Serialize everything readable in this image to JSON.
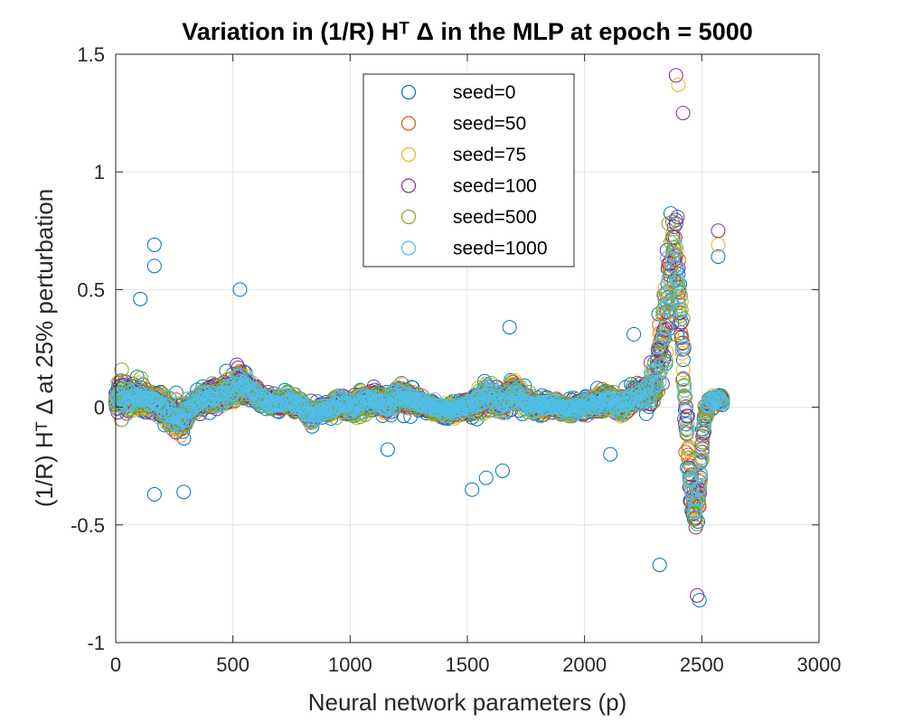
{
  "chart_data": {
    "type": "scatter",
    "title": "Variation in (1/R) Hᵀ Δ in the MLP at epoch = 5000",
    "xlabel": "Neural network parameters (p)",
    "ylabel": "(1/R) Hᵀ Δ at 25% perturbation",
    "xlim": [
      0,
      3000
    ],
    "ylim": [
      -1,
      1.5
    ],
    "x_ticks": [
      0,
      500,
      1000,
      1500,
      2000,
      2500,
      3000
    ],
    "y_ticks": [
      -1,
      -0.5,
      0,
      0.5,
      1,
      1.5
    ],
    "x_tick_labels": [
      "0",
      "500",
      "1000",
      "1500",
      "2000",
      "2500",
      "3000"
    ],
    "y_tick_labels": [
      "-1",
      "-0.5",
      "0",
      "0.5",
      "1",
      "1.5"
    ],
    "grid": true,
    "legend_position": "top-center",
    "marker": "open-circle",
    "profile": {
      "x": [
        0,
        25,
        60,
        110,
        160,
        210,
        260,
        290,
        320,
        380,
        440,
        490,
        530,
        570,
        620,
        680,
        740,
        800,
        830,
        860,
        910,
        960,
        1000,
        1050,
        1100,
        1150,
        1200,
        1250,
        1300,
        1350,
        1400,
        1450,
        1500,
        1550,
        1600,
        1650,
        1700,
        1750,
        1800,
        1850,
        1900,
        1950,
        2000,
        2050,
        2100,
        2150,
        2200,
        2250,
        2300,
        2330,
        2350,
        2370,
        2390,
        2410,
        2430,
        2450,
        2470,
        2490,
        2510,
        2530,
        2560,
        2590
      ],
      "y": [
        0.03,
        0.04,
        0.05,
        0.04,
        0.02,
        0.0,
        -0.05,
        -0.04,
        0.0,
        0.04,
        0.05,
        0.07,
        0.1,
        0.08,
        0.04,
        0.02,
        0.03,
        0.0,
        -0.04,
        -0.02,
        0.0,
        0.02,
        0.0,
        0.02,
        0.04,
        0.0,
        0.05,
        0.04,
        0.02,
        0.0,
        -0.02,
        -0.01,
        0.0,
        0.03,
        0.05,
        0.01,
        0.07,
        0.02,
        0.0,
        0.01,
        0.0,
        -0.01,
        0.0,
        0.02,
        0.03,
        0.0,
        0.04,
        0.05,
        0.1,
        0.25,
        0.45,
        0.6,
        0.65,
        0.4,
        0.0,
        -0.3,
        -0.45,
        -0.35,
        -0.05,
        0.02,
        0.03,
        0.03
      ],
      "spread": [
        0.08,
        0.16,
        0.12,
        0.1,
        0.08,
        0.1,
        0.14,
        0.12,
        0.06,
        0.09,
        0.1,
        0.12,
        0.13,
        0.08,
        0.05,
        0.05,
        0.07,
        0.05,
        0.09,
        0.06,
        0.06,
        0.09,
        0.07,
        0.1,
        0.09,
        0.06,
        0.1,
        0.09,
        0.07,
        0.06,
        0.05,
        0.06,
        0.06,
        0.11,
        0.12,
        0.07,
        0.12,
        0.08,
        0.06,
        0.07,
        0.06,
        0.06,
        0.06,
        0.07,
        0.08,
        0.07,
        0.08,
        0.1,
        0.2,
        0.3,
        0.45,
        0.55,
        0.45,
        0.35,
        0.3,
        0.22,
        0.18,
        0.15,
        0.1,
        0.06,
        0.04,
        0.04
      ]
    },
    "outliers": [
      {
        "x": 165,
        "y": 0.69,
        "series": 0
      },
      {
        "x": 165,
        "y": 0.6,
        "series": 0
      },
      {
        "x": 105,
        "y": 0.46,
        "series": 0
      },
      {
        "x": 530,
        "y": 0.5,
        "series": 0
      },
      {
        "x": 165,
        "y": -0.37,
        "series": 0
      },
      {
        "x": 290,
        "y": -0.36,
        "series": 0
      },
      {
        "x": 2320,
        "y": -0.67,
        "series": 0
      },
      {
        "x": 2490,
        "y": -0.82,
        "series": 0
      },
      {
        "x": 2570,
        "y": 0.64,
        "series": 0
      },
      {
        "x": 2570,
        "y": 0.75,
        "series": 3
      },
      {
        "x": 2390,
        "y": 1.41,
        "series": 3
      },
      {
        "x": 2400,
        "y": 1.37,
        "series": 2
      },
      {
        "x": 2420,
        "y": 1.25,
        "series": 3
      },
      {
        "x": 2480,
        "y": -0.8,
        "series": 3
      },
      {
        "x": 1680,
        "y": 0.34,
        "series": 0
      },
      {
        "x": 2210,
        "y": 0.31,
        "series": 0
      },
      {
        "x": 1580,
        "y": -0.3,
        "series": 0
      },
      {
        "x": 1650,
        "y": -0.27,
        "series": 0
      },
      {
        "x": 1520,
        "y": -0.35,
        "series": 0
      },
      {
        "x": 2110,
        "y": -0.2,
        "series": 0
      },
      {
        "x": 1160,
        "y": -0.18,
        "series": 0
      },
      {
        "x": 2570,
        "y": 0.69,
        "series": 2
      }
    ],
    "series": [
      {
        "name": "seed=0",
        "color": "#0072BD"
      },
      {
        "name": "seed=50",
        "color": "#D95319"
      },
      {
        "name": "seed=75",
        "color": "#EDB120"
      },
      {
        "name": "seed=100",
        "color": "#7E2F8E"
      },
      {
        "name": "seed=500",
        "color": "#77AC30"
      },
      {
        "name": "seed=1000",
        "color": "#4DBEEE"
      }
    ]
  }
}
